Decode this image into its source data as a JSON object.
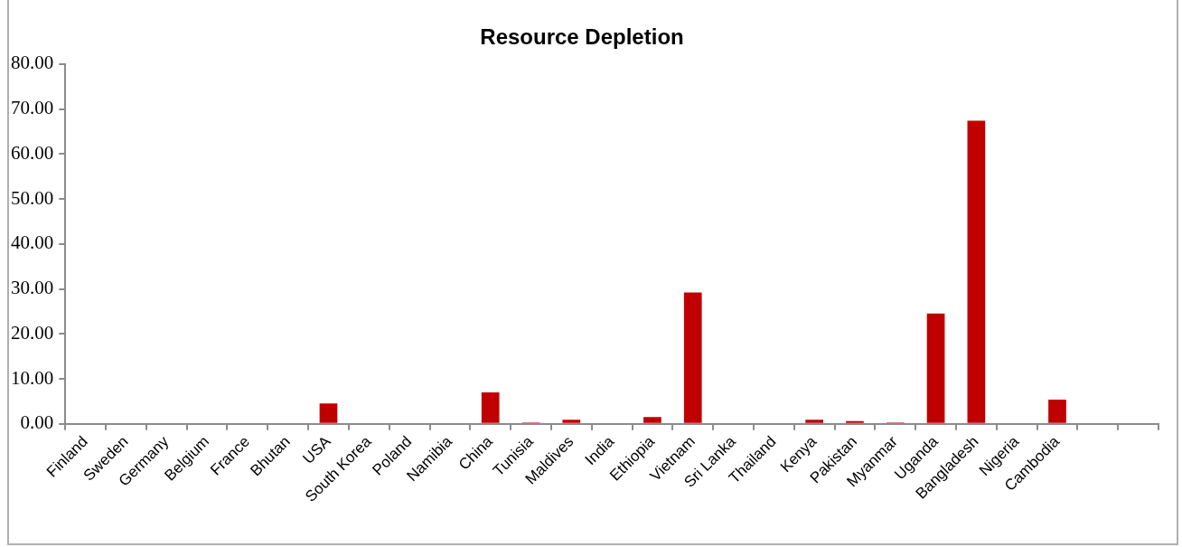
{
  "chart_data": {
    "type": "bar",
    "title": "Resource Depletion",
    "categories": [
      "Finland",
      "Sweden",
      "Germany",
      "Belgium",
      "France",
      "Bhutan",
      "USA",
      "South Korea",
      "Poland",
      "Namibia",
      "China",
      "Tunisia",
      "Maldives",
      "India",
      "Ethiopia",
      "Vietnam",
      "Sri Lanka",
      "Thailand",
      "Kenya",
      "Pakistan",
      "Myanmar",
      "Uganda",
      "Bangladesh",
      "Nigeria",
      "Cambodia",
      null,
      null
    ],
    "values": [
      0,
      0,
      0,
      0,
      0,
      0,
      4.5,
      0,
      0,
      0,
      7.0,
      0.3,
      0.9,
      0,
      1.5,
      29.2,
      0,
      0,
      0.9,
      0.6,
      0.3,
      24.5,
      67.4,
      0,
      5.4,
      0,
      0
    ],
    "color": "#c00000",
    "ylim": [
      0,
      80
    ],
    "yticks": [
      {
        "value": 0,
        "label": "0.00"
      },
      {
        "value": 10,
        "label": "10.00"
      },
      {
        "value": 20,
        "label": "20.00"
      },
      {
        "value": 30,
        "label": "30.00"
      },
      {
        "value": 40,
        "label": "40.00"
      },
      {
        "value": 50,
        "label": "50.00"
      },
      {
        "value": 60,
        "label": "60.00"
      },
      {
        "value": 70,
        "label": "70.00"
      },
      {
        "value": 80,
        "label": "80.00"
      }
    ],
    "grid": false,
    "legend": false
  }
}
